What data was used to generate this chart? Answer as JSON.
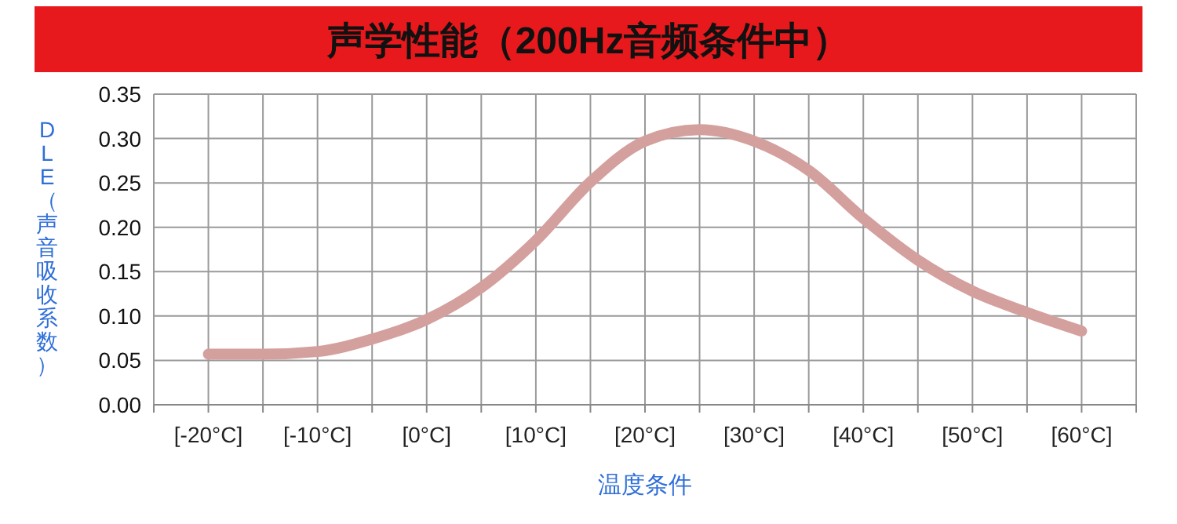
{
  "chart_data": {
    "type": "line",
    "title": "声学性能（200Hz音频条件中）",
    "xlabel": "温度条件",
    "ylabel": "DLE（声音吸收系数）",
    "x": [
      -20,
      -15,
      -10,
      -5,
      0,
      5,
      10,
      15,
      20,
      25,
      30,
      35,
      40,
      45,
      50,
      55,
      60
    ],
    "series": [
      {
        "color": "#d4a09e",
        "values": [
          0.057,
          0.057,
          0.06,
          0.074,
          0.096,
          0.132,
          0.185,
          0.251,
          0.297,
          0.31,
          0.297,
          0.264,
          0.21,
          0.163,
          0.128,
          0.104,
          0.083
        ]
      }
    ],
    "xlim": [
      -25,
      65
    ],
    "xticks": [
      {
        "value": -25,
        "label": null
      },
      {
        "value": -20,
        "label": "[-20°C]"
      },
      {
        "value": -15,
        "label": null
      },
      {
        "value": -10,
        "label": "[-10°C]"
      },
      {
        "value": -5,
        "label": null
      },
      {
        "value": 0,
        "label": "[0°C]"
      },
      {
        "value": 5,
        "label": null
      },
      {
        "value": 10,
        "label": "[10°C]"
      },
      {
        "value": 15,
        "label": null
      },
      {
        "value": 20,
        "label": "[20°C]"
      },
      {
        "value": 25,
        "label": null
      },
      {
        "value": 30,
        "label": "[30°C]"
      },
      {
        "value": 35,
        "label": null
      },
      {
        "value": 40,
        "label": "[40°C]"
      },
      {
        "value": 45,
        "label": null
      },
      {
        "value": 50,
        "label": "[50°C]"
      },
      {
        "value": 55,
        "label": null
      },
      {
        "value": 60,
        "label": "[60°C]"
      },
      {
        "value": 65,
        "label": null
      }
    ],
    "ylim": [
      0,
      0.35
    ],
    "yticks": [
      {
        "value": 0,
        "label": "0.00"
      },
      {
        "value": 0.05,
        "label": "0.05"
      },
      {
        "value": 0.1,
        "label": "0.10"
      },
      {
        "value": 0.15,
        "label": "0.15"
      },
      {
        "value": 0.2,
        "label": "0.20"
      },
      {
        "value": 0.25,
        "label": "0.25"
      },
      {
        "value": 0.3,
        "label": "0.30"
      },
      {
        "value": 0.35,
        "label": "0.35"
      }
    ],
    "grid": true,
    "marker": "none",
    "line_style": "solid"
  }
}
